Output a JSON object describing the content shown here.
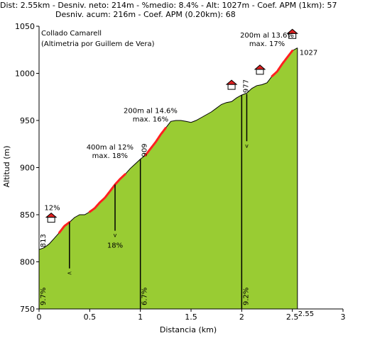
{
  "header": {
    "line1": "Dist: 2.55km - Desniv. neto: 214m - %medio: 8.4% - Alt: 1027m - Coef. APM (1km): 57",
    "line2": "Desniv. acum: 216m - Coef. APM (0.20km): 68"
  },
  "chart_data": {
    "type": "area",
    "title": "Collado Camarell",
    "subtitle": "(Altimetria por Guillem de Vera)",
    "xlabel": "Distancia (km)",
    "ylabel": "Altitud (m)",
    "xlim": [
      0,
      3
    ],
    "ylim": [
      750,
      1050
    ],
    "x_ticks": [
      "0",
      "0.5",
      "1",
      "1.5",
      "2",
      "2.5",
      "3"
    ],
    "y_ticks": [
      "750",
      "800",
      "850",
      "900",
      "950",
      "1000",
      "1050"
    ],
    "x_end_label": "2.55",
    "grid": false,
    "colors": {
      "fill": "#99cc33",
      "steep": "#ff2020",
      "line": "#000000"
    },
    "profile": {
      "x": [
        0,
        0.05,
        0.1,
        0.15,
        0.2,
        0.25,
        0.3,
        0.35,
        0.4,
        0.45,
        0.5,
        0.55,
        0.6,
        0.65,
        0.7,
        0.75,
        0.8,
        0.85,
        0.9,
        0.95,
        1.0,
        1.05,
        1.1,
        1.15,
        1.2,
        1.25,
        1.3,
        1.35,
        1.4,
        1.45,
        1.5,
        1.55,
        1.6,
        1.65,
        1.7,
        1.75,
        1.8,
        1.85,
        1.9,
        1.95,
        2.0,
        2.05,
        2.1,
        2.15,
        2.2,
        2.25,
        2.3,
        2.35,
        2.4,
        2.45,
        2.5,
        2.55
      ],
      "y": [
        813,
        815,
        819,
        825,
        831,
        838,
        842,
        847,
        850,
        850,
        853,
        857,
        863,
        868,
        875,
        882,
        888,
        893,
        899,
        904,
        909,
        913,
        920,
        927,
        935,
        942,
        949,
        950,
        950,
        949,
        948,
        950,
        953,
        956,
        959,
        963,
        967,
        969,
        970,
        974,
        977,
        979,
        984,
        987,
        988,
        990,
        997,
        1002,
        1010,
        1017,
        1024,
        1027
      ]
    },
    "steep_segments": [
      [
        0.2,
        0.3
      ],
      [
        0.5,
        0.85
      ],
      [
        1.05,
        1.25
      ],
      [
        2.3,
        2.5
      ]
    ],
    "markers": [
      {
        "x": 0.3,
        "top": 842,
        "bottom": 793,
        "symbol": "<",
        "label": ""
      },
      {
        "x": 0.75,
        "top": 882,
        "bottom": 833,
        "symbol": "v",
        "label": "18%"
      },
      {
        "x": 1.0,
        "top": 909,
        "bottom": 750,
        "symbol": "",
        "label": ""
      },
      {
        "x": 2.0,
        "top": 977,
        "bottom": 750,
        "symbol": "",
        "label": ""
      },
      {
        "x": 2.05,
        "top": 978,
        "bottom": 928,
        "symbol": "v",
        "label": ""
      }
    ],
    "bottom_labels": [
      {
        "x": 0.0,
        "text": "9.7%"
      },
      {
        "x": 1.0,
        "text": "6.7%"
      },
      {
        "x": 2.0,
        "text": "9.2%"
      }
    ],
    "rotated_altitudes": [
      {
        "x": 0.0,
        "y": 813,
        "text": "813"
      },
      {
        "x": 1.0,
        "y": 909,
        "text": "909"
      },
      {
        "x": 2.0,
        "y": 977,
        "text": "977"
      }
    ],
    "houses": [
      {
        "x": 0.12,
        "y": 842
      },
      {
        "x": 1.9,
        "y": 983
      },
      {
        "x": 2.18,
        "y": 999
      },
      {
        "x": 2.5,
        "y": 1037
      }
    ],
    "annotations": [
      {
        "lines": [
          "12%"
        ],
        "x": 0.13,
        "y": 855
      },
      {
        "lines": [
          "400m al 12%",
          "max. 18%"
        ],
        "x": 0.7,
        "y": 919
      },
      {
        "lines": [
          "200m al 14.6%",
          "max. 16%"
        ],
        "x": 1.1,
        "y": 958
      },
      {
        "lines": [
          "200m al 13.6%",
          "max. 17%"
        ],
        "x": 2.25,
        "y": 1038
      }
    ],
    "end_label": {
      "x": 2.55,
      "y": 1027,
      "text": "1027"
    }
  }
}
